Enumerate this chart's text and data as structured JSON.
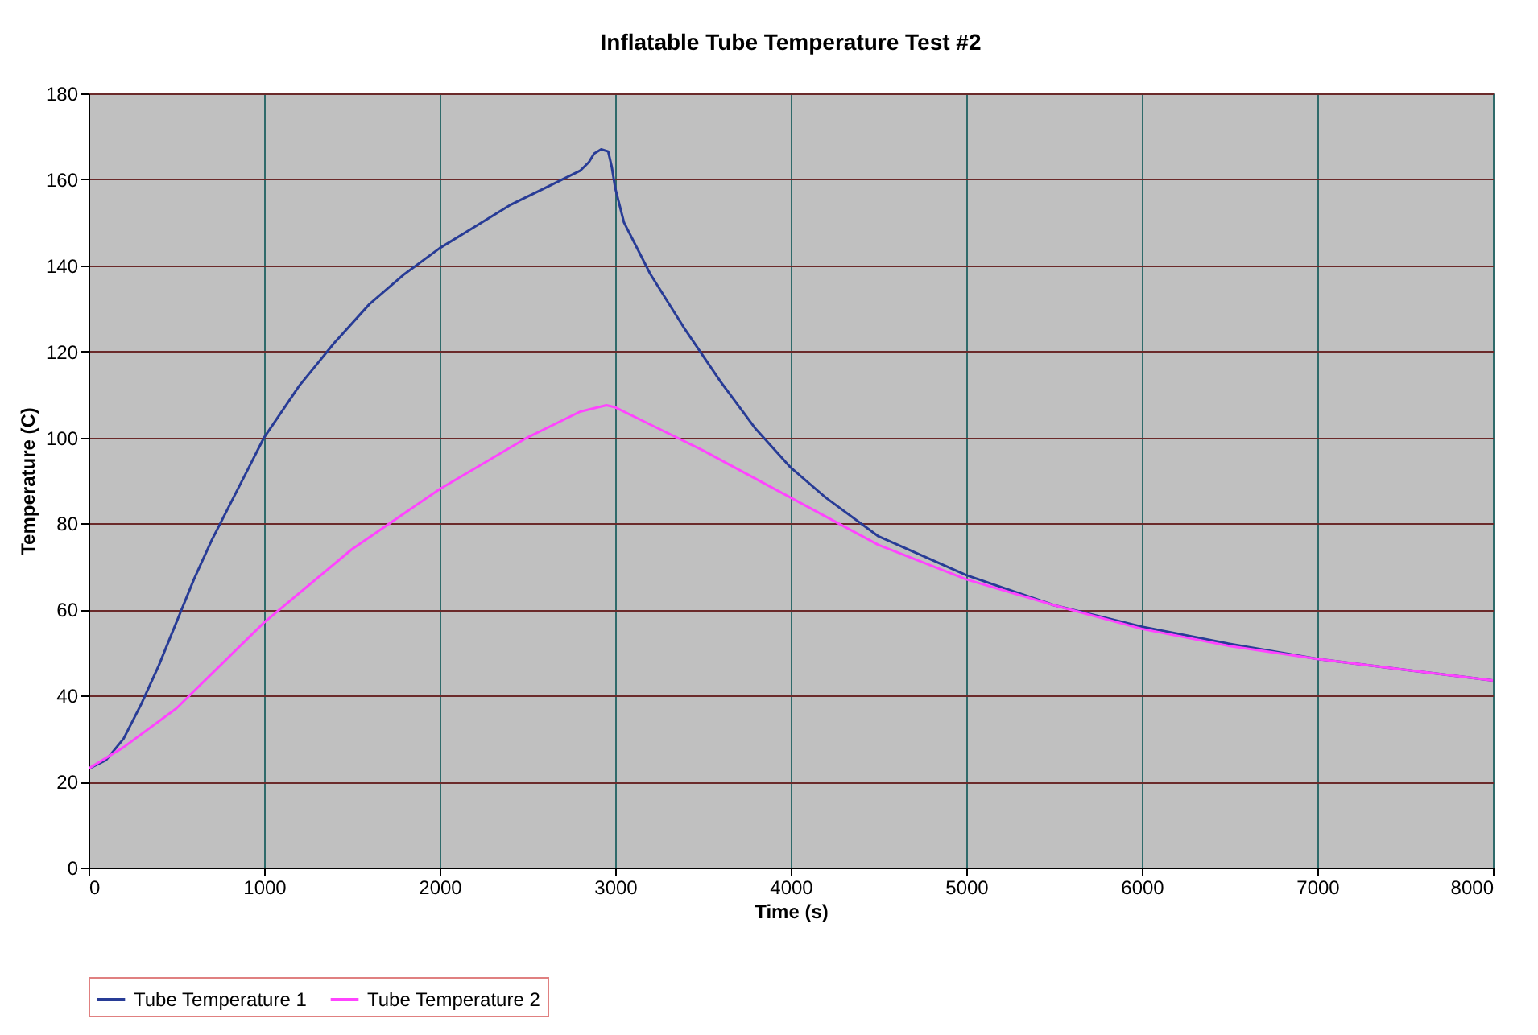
{
  "chart_data": {
    "type": "line",
    "title": "Inflatable Tube Temperature Test #2",
    "xlabel": "Time (s)",
    "ylabel": "Temperature (C)",
    "xlim": [
      0,
      8000
    ],
    "xticks": [
      0,
      1000,
      2000,
      3000,
      4000,
      5000,
      6000,
      7000,
      8000
    ],
    "ylim": [
      0,
      180
    ],
    "yticks": [
      0,
      20,
      40,
      60,
      80,
      100,
      120,
      140,
      160,
      180
    ],
    "grid": true,
    "legend": "bottom",
    "marker": "none",
    "line_style": "solid",
    "series": [
      {
        "name": "Tube Temperature 1",
        "color": "#283c96",
        "x": [
          0,
          100,
          200,
          300,
          400,
          500,
          600,
          700,
          800,
          900,
          1000,
          1200,
          1400,
          1600,
          1800,
          2000,
          2200,
          2400,
          2600,
          2800,
          2850,
          2880,
          2920,
          2960,
          2980,
          3000,
          3050,
          3200,
          3400,
          3600,
          3800,
          4000,
          4200,
          4500,
          5000,
          5500,
          6000,
          6500,
          7000,
          7500,
          8000
        ],
        "values": [
          23,
          25,
          30,
          38,
          47,
          57,
          67,
          76,
          84,
          92,
          100,
          112,
          122,
          131,
          138,
          144,
          149,
          154,
          158,
          162,
          164,
          166,
          167,
          166.5,
          163,
          158,
          150,
          138,
          125,
          113,
          102,
          93,
          86,
          77,
          68,
          61,
          56,
          52,
          48.5,
          46,
          43.5
        ]
      },
      {
        "name": "Tube Temperature 2",
        "color": "#ff44ff",
        "x": [
          0,
          200,
          500,
          1000,
          1500,
          2000,
          2500,
          2800,
          2950,
          3000,
          3200,
          3500,
          4000,
          4500,
          5000,
          5500,
          6000,
          6500,
          7000,
          7500,
          8000
        ],
        "values": [
          23,
          28,
          37,
          57,
          74,
          88,
          100,
          106,
          107.5,
          107,
          103,
          97,
          86,
          75,
          67,
          61,
          55.5,
          51.5,
          48.5,
          46,
          43.5
        ]
      }
    ]
  }
}
